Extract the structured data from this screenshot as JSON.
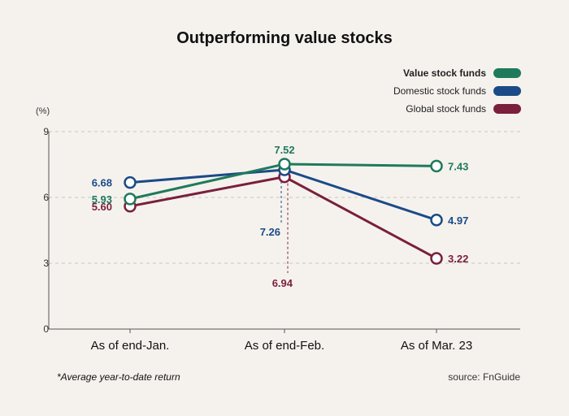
{
  "chart_data": {
    "type": "line",
    "title": "Outperforming value stocks",
    "unit": "(%)",
    "categories": [
      "As of end-Jan.",
      "As of end-Feb.",
      "As of Mar. 23"
    ],
    "ylim": [
      0,
      9
    ],
    "yticks": [
      0,
      3,
      6,
      9
    ],
    "grid": true,
    "legend_position": "top-right",
    "series": [
      {
        "name": "Value stock funds",
        "color": "#1f7a5c",
        "values": [
          5.93,
          7.52,
          7.43
        ],
        "labels": [
          "5.93",
          "7.52",
          "7.43"
        ],
        "label_bold_legend": true
      },
      {
        "name": "Domestic stock funds",
        "color": "#1b4b87",
        "values": [
          6.68,
          7.26,
          4.97
        ],
        "labels": [
          "6.68",
          "7.26",
          "4.97"
        ]
      },
      {
        "name": "Global stock funds",
        "color": "#7a1f3c",
        "values": [
          5.6,
          6.94,
          3.22
        ],
        "labels": [
          "5.60",
          "6.94",
          "3.22"
        ]
      }
    ],
    "footnote": "*Average year-to-date return",
    "source": "source: FnGuide"
  }
}
